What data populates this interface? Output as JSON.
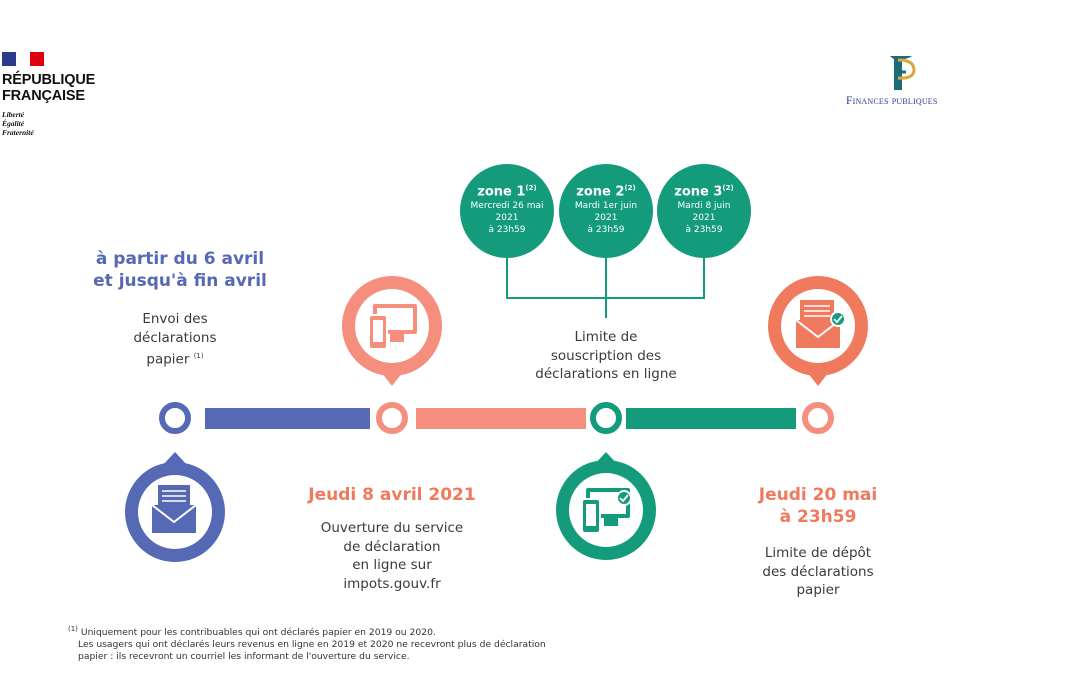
{
  "header": {
    "republic_line1": "RÉPUBLIQUE",
    "republic_line2": "FRANÇAISE",
    "motto": [
      "Liberté",
      "Égalité",
      "Fraternité"
    ],
    "finances_label": "Finances publiques"
  },
  "colors": {
    "blue": "#5569b5",
    "salmon": "#f58e7c",
    "orange": "#f07a5d",
    "green": "#139b7c",
    "flag_blue": "#2b3a8c",
    "flag_red": "#e1000f"
  },
  "steps": [
    {
      "heading": "à partir du 6 avril et jusqu'à fin avril",
      "heading_lines": [
        "à partir du 6 avril",
        "et jusqu'à fin avril"
      ],
      "text_lines": [
        "Envoi des",
        "déclarations",
        "papier"
      ],
      "note": "(1)",
      "icon": "paper-envelope-icon"
    },
    {
      "heading_lines": [
        "Jeudi 8 avril 2021"
      ],
      "text_lines": [
        "Ouverture du service",
        "de déclaration",
        "en ligne sur",
        "impots.gouv.fr"
      ],
      "icon": "computer-phone-icon"
    },
    {
      "text_lines": [
        "Limite de",
        "souscription des",
        "déclarations en ligne"
      ],
      "icon": "computer-phone-check-icon"
    },
    {
      "heading_lines": [
        "Jeudi 20 mai",
        "à 23h59"
      ],
      "text_lines": [
        "Limite de dépôt",
        "des déclarations",
        "papier"
      ],
      "icon": "envelope-check-icon"
    }
  ],
  "zones": [
    {
      "name": "zone 1",
      "note": "(2)",
      "date_lines": [
        "Mercredi 26 mai",
        "2021",
        "à 23h59"
      ]
    },
    {
      "name": "zone 2",
      "note": "(2)",
      "date_lines": [
        "Mardi 1er juin",
        "2021",
        "à 23h59"
      ]
    },
    {
      "name": "zone 3",
      "note": "(2)",
      "date_lines": [
        "Mardi 8 juin",
        "2021",
        "à 23h59"
      ]
    }
  ],
  "footnote": {
    "marker": "(1)",
    "lines": [
      "Uniquement pour les contribuables qui ont déclarés papier en 2019 ou 2020.",
      "Les usagers qui ont déclarés leurs revenus en ligne en 2019 et 2020 ne recevront plus de déclaration",
      "papier : ils recevront un courriel les informant de l'ouverture du service."
    ]
  }
}
